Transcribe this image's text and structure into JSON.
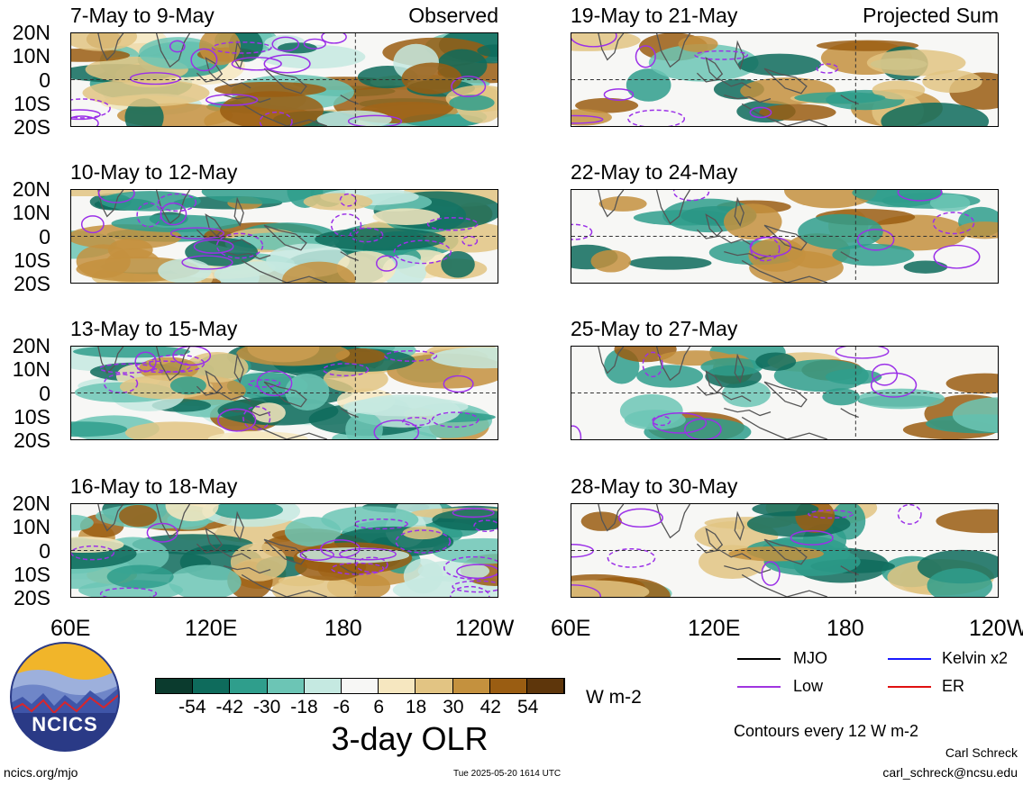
{
  "panels": [
    {
      "title": "7-May to 9-May",
      "corner": "Observed"
    },
    {
      "title": "19-May to 21-May",
      "corner": "Projected Sum"
    },
    {
      "title": "10-May to 12-May",
      "corner": ""
    },
    {
      "title": "22-May to 24-May",
      "corner": ""
    },
    {
      "title": "13-May to 15-May",
      "corner": ""
    },
    {
      "title": "25-May to 27-May",
      "corner": ""
    },
    {
      "title": "16-May to 18-May",
      "corner": ""
    },
    {
      "title": "28-May to 30-May",
      "corner": ""
    }
  ],
  "lat_labels": [
    "20N",
    "10N",
    "0",
    "10S",
    "20S"
  ],
  "lon_labels": [
    "60E",
    "120E",
    "180",
    "120W"
  ],
  "colorbar": {
    "colors": [
      "#0b3b2e",
      "#0e6b5c",
      "#2f9e8c",
      "#6cc5b5",
      "#c5e9e1",
      "#f7f7f5",
      "#f6e7c0",
      "#e2c483",
      "#c4913e",
      "#9a5d12",
      "#5e360b"
    ],
    "labels": [
      "-54",
      "-42",
      "-30",
      "-18",
      "-6",
      "6",
      "18",
      "30",
      "42",
      "54"
    ],
    "units": "W m-2",
    "title": "3-day OLR"
  },
  "legend": {
    "items": [
      {
        "label": "MJO",
        "color": "#000000"
      },
      {
        "label": "Kelvin x2",
        "color": "#1a1aff"
      },
      {
        "label": "Low",
        "color": "#a035e0"
      },
      {
        "label": "ER",
        "color": "#e01010"
      }
    ],
    "contours": "Contours every 12 W m-2"
  },
  "logo": {
    "text": "NCICS"
  },
  "footer": {
    "left": "ncics.org/mjo",
    "center": "Tue 2025-05-20 1614 UTC",
    "author": "Carl Schreck",
    "email": "carl_schreck@ncsu.edu"
  }
}
